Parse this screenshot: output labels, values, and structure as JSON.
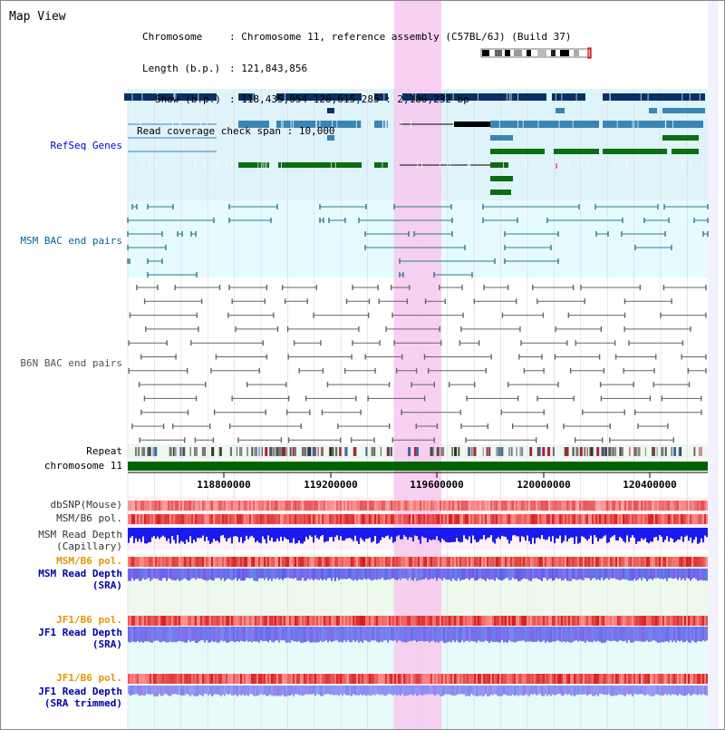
{
  "title": "Map View",
  "header": {
    "chromosome_key": "Chromosome",
    "chromosome_val": ": Chromosome 11, reference assembly (C57BL/6J) (Build 37)",
    "length_key": "Length (b.p.)",
    "length_val": ": 121,843,856",
    "show_key": "Show (b.p.)",
    "show_val": ": 118,435,054-120,615,285 : 2,180,232 bp",
    "coverage_key": "Read coverage check span",
    "coverage_val": ": 10,000"
  },
  "tracks": {
    "refseq": "RefSeq Genes",
    "msm_bac": "MSM BAC end pairs",
    "b6n_bac": "B6N BAC end pairs",
    "repeat": "Repeat",
    "chromosome": "chromosome 11",
    "dbsnp": "dbSNP(Mouse)",
    "msm_b6_pol_1": "MSM/B6 pol.",
    "msm_depth_cap_1": "MSM Read Depth",
    "msm_depth_cap_2": "(Capillary)",
    "msm_b6_pol_2": "MSM/B6 pol.",
    "msm_depth_sra_1": "MSM Read Depth",
    "msm_depth_sra_2": "(SRA)",
    "jf1_b6_pol_1": "JF1/B6 pol.",
    "jf1_depth_sra_1": "JF1 Read Depth",
    "jf1_depth_sra_2": "(SRA)",
    "jf1_b6_pol_2": "JF1/B6 pol.",
    "jf1_depth_trim_1": "JF1 Read Depth",
    "jf1_depth_trim_2": "(SRA trimmed)"
  },
  "axis": {
    "ticks": [
      "118800000",
      "119200000",
      "119600000",
      "120000000",
      "120400000"
    ]
  },
  "colors": {
    "refseq_label": "#0000cc",
    "msm_label": "#006699",
    "b6n_label": "#555555",
    "pol_label": "#e69500",
    "depth_label": "#0000aa",
    "highlight": "#f7c8ef",
    "gene_dark": "#0a2f66",
    "gene_mid": "#3a85b4",
    "gene_green": "#0b6e11"
  },
  "icons": {
    "chromosome_ideogram": "chromosome-ideogram-icon"
  }
}
